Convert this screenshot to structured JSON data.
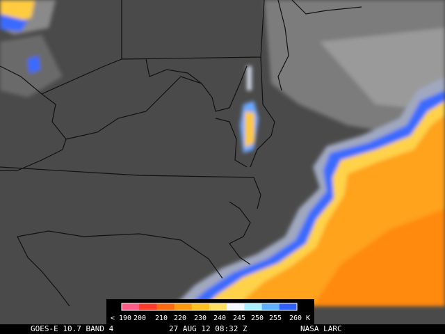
{
  "legend": {
    "labels": [
      "< 190",
      "200",
      "210",
      "220",
      "230",
      "240",
      "245",
      "250",
      "255",
      "260 K"
    ]
  },
  "caption": {
    "source": "GOES-E 10.7 BAND 4",
    "time": "27 AUG 12 08:32 Z",
    "credit": "NASA LARC"
  }
}
